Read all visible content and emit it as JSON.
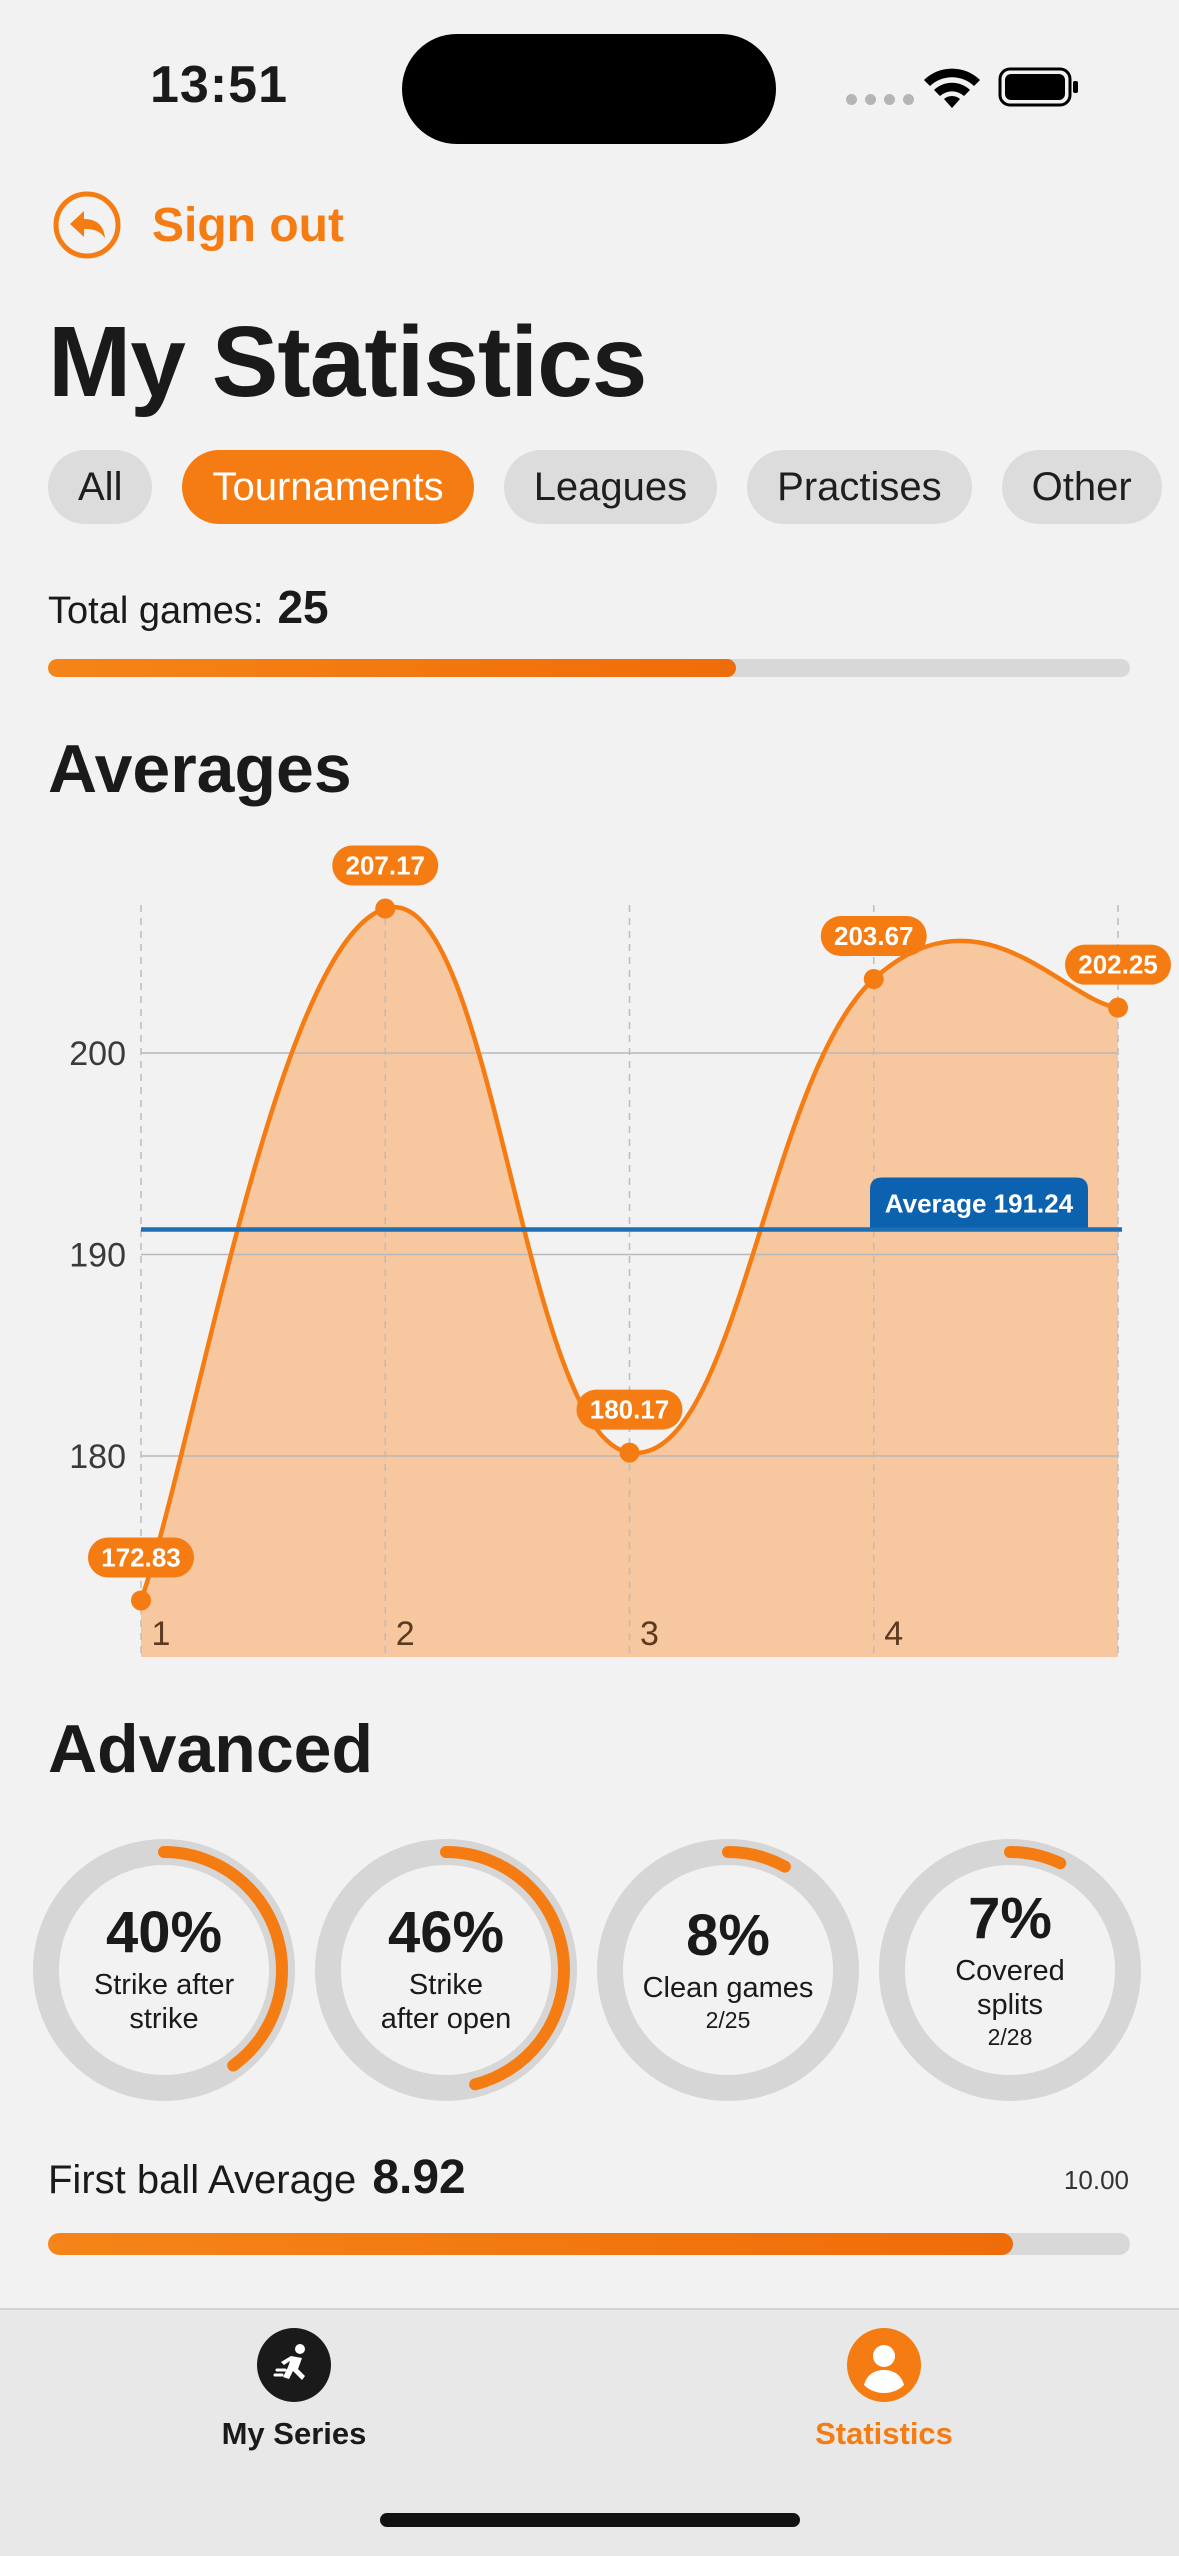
{
  "status_bar": {
    "time": "13:51"
  },
  "header": {
    "sign_out_label": "Sign out",
    "title": "My Statistics"
  },
  "filters": {
    "chips": [
      {
        "label": "All",
        "active": false
      },
      {
        "label": "Tournaments",
        "active": true
      },
      {
        "label": "Leagues",
        "active": false
      },
      {
        "label": "Practises",
        "active": false
      },
      {
        "label": "Other",
        "active": false
      }
    ]
  },
  "total_games": {
    "label": "Total games:",
    "value": "25",
    "progress": 0.636
  },
  "averages_section": {
    "title": "Averages"
  },
  "chart_data": {
    "type": "area",
    "title": "",
    "xlabel": "",
    "ylabel": "",
    "x": [
      1,
      2,
      3,
      4,
      5
    ],
    "x_tick_labels": [
      "1",
      "2",
      "3",
      "4"
    ],
    "values": [
      172.83,
      207.17,
      180.17,
      203.67,
      202.25
    ],
    "point_labels": [
      "172.83",
      "207.17",
      "180.17",
      "203.67",
      "202.25"
    ],
    "y_ticks": [
      180,
      190,
      200
    ],
    "ylim": [
      170,
      210
    ],
    "average": {
      "value": 191.24,
      "label": "Average 191.24"
    },
    "colors": {
      "line": "#f57c12",
      "fill": "#f7c49a",
      "average_line": "#1f6fb5",
      "average_badge": "#0d62b0"
    },
    "grid": true
  },
  "advanced_section": {
    "title": "Advanced"
  },
  "rings": [
    {
      "value": "40%",
      "label_lines": [
        "Strike after",
        "strike"
      ],
      "sub": "",
      "fraction": 0.4
    },
    {
      "value": "46%",
      "label_lines": [
        "Strike",
        "after open"
      ],
      "sub": "",
      "fraction": 0.46
    },
    {
      "value": "8%",
      "label_lines": [
        "Clean games"
      ],
      "sub": "2/25",
      "fraction": 0.08
    },
    {
      "value": "7%",
      "label_lines": [
        "Covered",
        "splits"
      ],
      "sub": "2/28",
      "fraction": 0.07
    }
  ],
  "first_ball": {
    "label": "First ball Average",
    "value": "8.92",
    "max": "10.00",
    "fraction": 0.892
  },
  "tab_bar": {
    "tabs": [
      {
        "label": "My Series",
        "icon": "running-figure-icon",
        "active": false
      },
      {
        "label": "Statistics",
        "icon": "person-icon",
        "active": true
      }
    ]
  },
  "colors": {
    "accent": "#f57c12",
    "background": "#f2f2f2",
    "chip_inactive": "#dcdcdc",
    "track": "#d8d8d8"
  }
}
